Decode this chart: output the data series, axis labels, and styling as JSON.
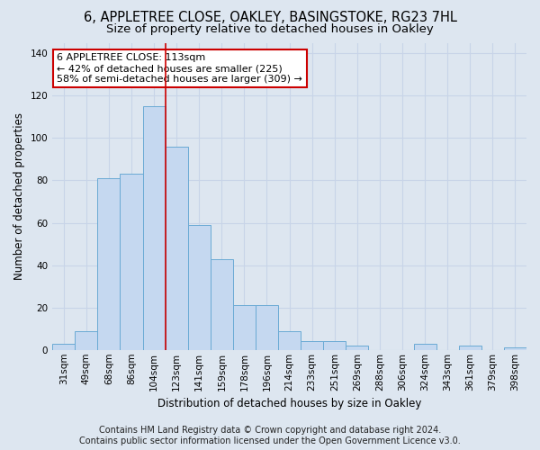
{
  "title": "6, APPLETREE CLOSE, OAKLEY, BASINGSTOKE, RG23 7HL",
  "subtitle": "Size of property relative to detached houses in Oakley",
  "xlabel": "Distribution of detached houses by size in Oakley",
  "ylabel": "Number of detached properties",
  "bar_labels": [
    "31sqm",
    "49sqm",
    "68sqm",
    "86sqm",
    "104sqm",
    "123sqm",
    "141sqm",
    "159sqm",
    "178sqm",
    "196sqm",
    "214sqm",
    "233sqm",
    "251sqm",
    "269sqm",
    "288sqm",
    "306sqm",
    "324sqm",
    "343sqm",
    "361sqm",
    "379sqm",
    "398sqm"
  ],
  "bar_values": [
    3,
    9,
    81,
    83,
    115,
    96,
    59,
    43,
    21,
    21,
    9,
    4,
    4,
    2,
    0,
    0,
    3,
    0,
    2,
    0,
    1
  ],
  "bar_color": "#c5d8f0",
  "bar_edge_color": "#6aaad4",
  "vline_x_idx": 4,
  "vline_color": "#cc0000",
  "annotation_text": "6 APPLETREE CLOSE: 113sqm\n← 42% of detached houses are smaller (225)\n58% of semi-detached houses are larger (309) →",
  "annotation_box_facecolor": "#ffffff",
  "annotation_box_edgecolor": "#cc0000",
  "ylim": [
    0,
    145
  ],
  "yticks": [
    0,
    20,
    40,
    60,
    80,
    100,
    120,
    140
  ],
  "grid_color": "#c8d4e8",
  "bg_color": "#dde6f0",
  "footer": "Contains HM Land Registry data © Crown copyright and database right 2024.\nContains public sector information licensed under the Open Government Licence v3.0.",
  "title_fontsize": 10.5,
  "subtitle_fontsize": 9.5,
  "xlabel_fontsize": 8.5,
  "ylabel_fontsize": 8.5,
  "tick_fontsize": 7.5,
  "annot_fontsize": 8,
  "footer_fontsize": 7
}
